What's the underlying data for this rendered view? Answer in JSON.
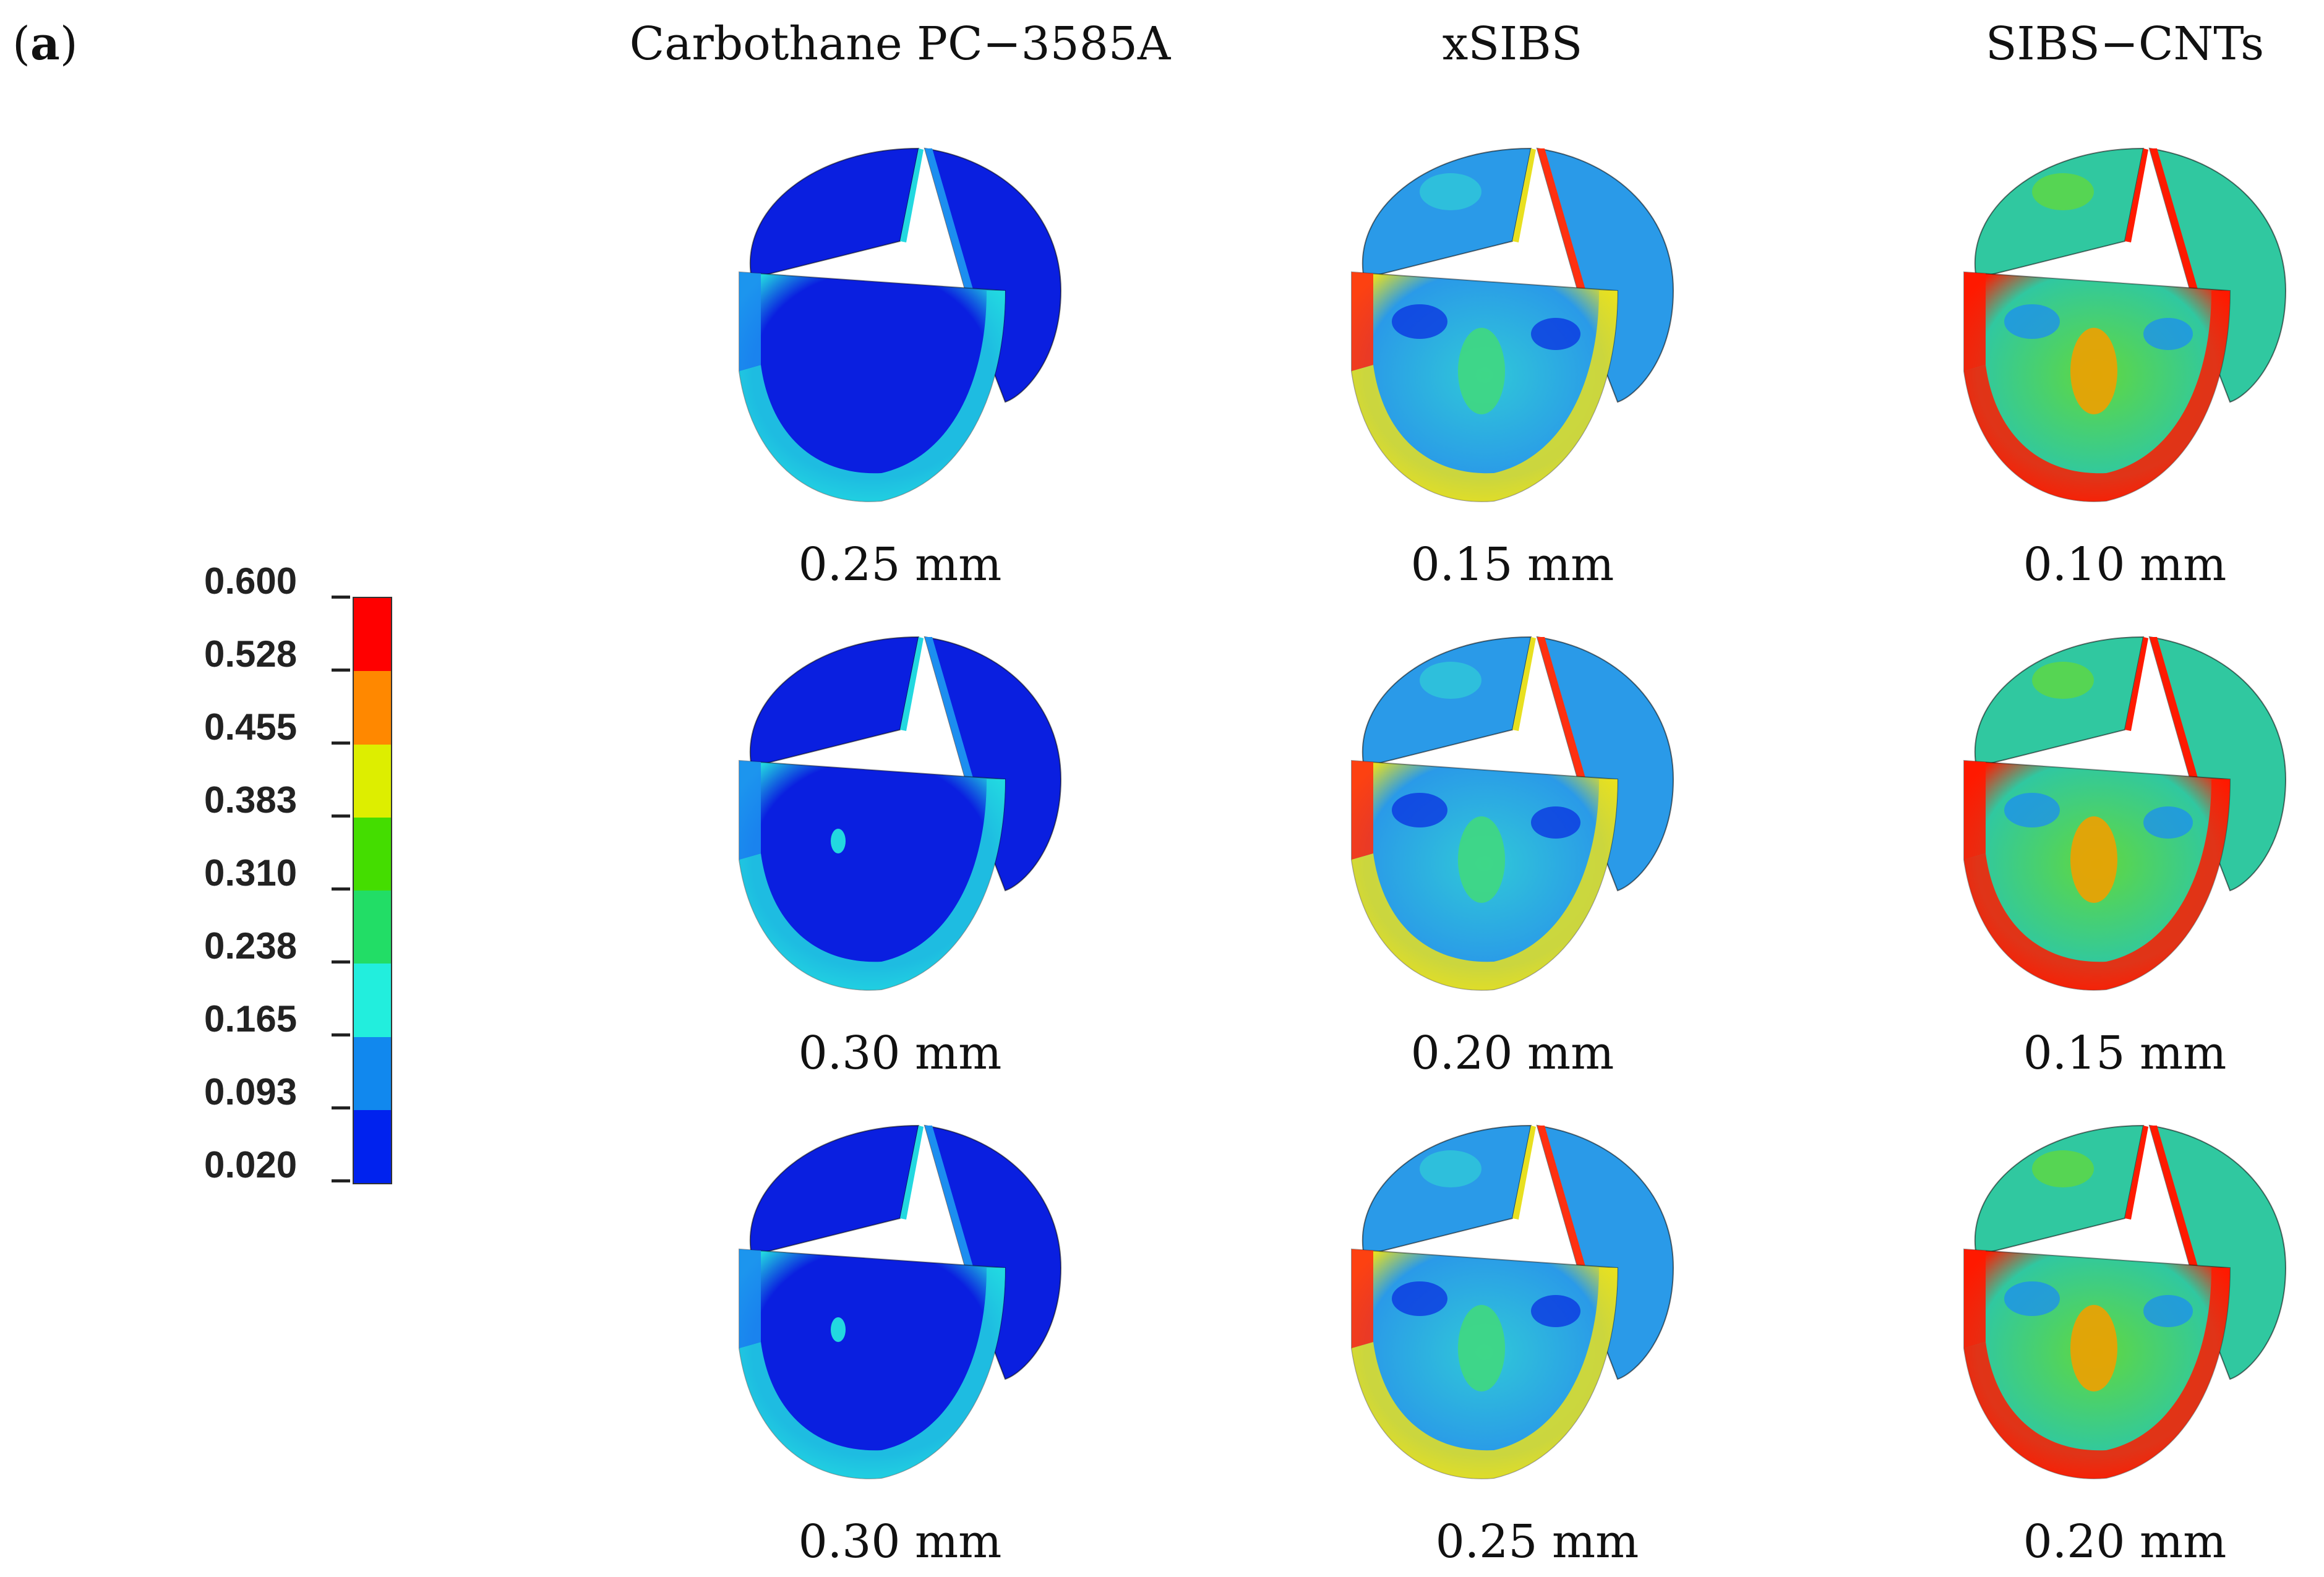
{
  "panel_label": "a",
  "columns": [
    {
      "header": "Carbothane PC−3585A",
      "thickness": [
        "0.25 mm",
        "0.30 mm",
        "0.30 mm"
      ]
    },
    {
      "header": "xSIBS",
      "thickness": [
        "0.15 mm",
        "0.20 mm",
        "0.25 mm"
      ]
    },
    {
      "header": "SIBS−CNTs",
      "thickness": [
        "0.10 mm",
        "0.15 mm",
        "0.20 mm"
      ]
    }
  ],
  "legend": {
    "ticks": [
      "0.600",
      "0.528",
      "0.455",
      "0.383",
      "0.310",
      "0.238",
      "0.165",
      "0.093",
      "0.020"
    ],
    "colors": [
      "#ff0000",
      "#ff8800",
      "#ddee00",
      "#44dd00",
      "#22dd66",
      "#22eedd",
      "#1188ee",
      "#0022ee"
    ]
  },
  "stress_levels": {
    "carbothane": "low",
    "xsibs": "medium",
    "sibs_cnts": "high"
  }
}
